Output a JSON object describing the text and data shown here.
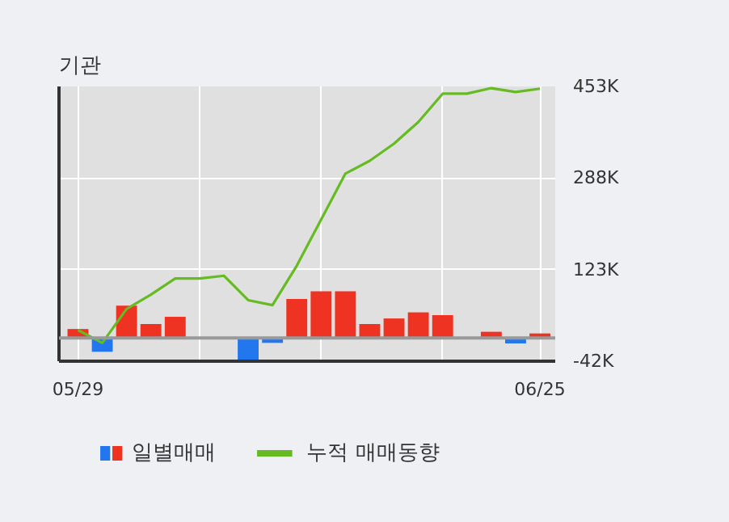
{
  "chart_data": {
    "type": "bar",
    "title": "기관",
    "categories": [
      "05/29",
      null,
      null,
      null,
      null,
      null,
      null,
      null,
      null,
      null,
      null,
      null,
      null,
      null,
      null,
      null,
      null,
      null,
      null,
      "06/25"
    ],
    "series": [
      {
        "name": "일별매매",
        "values": [
          16,
          -25,
          58,
          25,
          38,
          0,
          0,
          -42,
          -9,
          70,
          84,
          84,
          25,
          35,
          46,
          41,
          0,
          11,
          -10,
          8
        ],
        "colors": [
          "#ee3322",
          "#2277ee",
          "#ee3322",
          "#ee3322",
          "#ee3322",
          "#ee3322",
          "#ee3322",
          "#2277ee",
          "#2277ee",
          "#ee3322",
          "#ee3322",
          "#ee3322",
          "#ee3322",
          "#ee3322",
          "#ee3322",
          "#ee3322",
          "#ee3322",
          "#ee3322",
          "#2277ee",
          "#ee3322"
        ]
      },
      {
        "name": "누적 매매동향",
        "type": "line",
        "color": "#66bb22",
        "values": [
          14,
          -9,
          52,
          78,
          107,
          107,
          112,
          68,
          59,
          130,
          213,
          296,
          319,
          350,
          389,
          440,
          440,
          450,
          443,
          449
        ]
      }
    ],
    "ylim": [
      -42,
      453
    ],
    "yticks": [
      {
        "value": 453,
        "label": "453K"
      },
      {
        "value": 288,
        "label": "288K"
      },
      {
        "value": 123,
        "label": "123K"
      },
      {
        "value": -42,
        "label": "-42K"
      }
    ],
    "grid": true,
    "legend": "bottom"
  }
}
